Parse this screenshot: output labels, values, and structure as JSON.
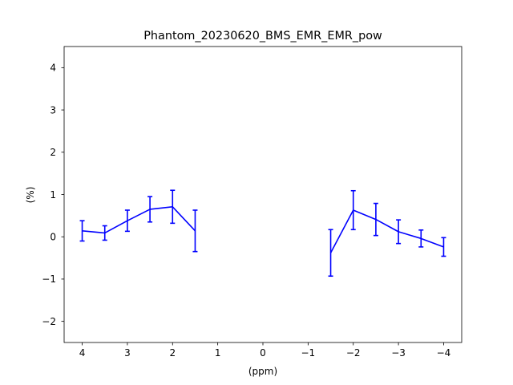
{
  "chart_data": {
    "type": "line",
    "title": "Phantom_20230620_BMS_EMR_EMR_pow",
    "xlabel": "(ppm)",
    "ylabel": "(%)",
    "xlim": [
      4.4,
      -4.4
    ],
    "ylim": [
      -2.5,
      4.5
    ],
    "x_reversed": true,
    "grid": false,
    "xticks": [
      {
        "value": 4,
        "label": "4"
      },
      {
        "value": 3,
        "label": "3"
      },
      {
        "value": 2,
        "label": "2"
      },
      {
        "value": 1,
        "label": "1"
      },
      {
        "value": 0,
        "label": "0"
      },
      {
        "value": -1,
        "label": "−1"
      },
      {
        "value": -2,
        "label": "−2"
      },
      {
        "value": -3,
        "label": "−3"
      },
      {
        "value": -4,
        "label": "−4"
      }
    ],
    "yticks": [
      {
        "value": -2,
        "label": "−2"
      },
      {
        "value": -1,
        "label": "−1"
      },
      {
        "value": 0,
        "label": "0"
      },
      {
        "value": 1,
        "label": "1"
      },
      {
        "value": 2,
        "label": "2"
      },
      {
        "value": 3,
        "label": "3"
      },
      {
        "value": 4,
        "label": "4"
      }
    ],
    "series": [
      {
        "color": "#0000ff",
        "segments": [
          {
            "x": [
              4.0,
              3.5,
              3.0,
              2.5,
              2.0,
              1.5
            ],
            "y": [
              0.14,
              0.09,
              0.38,
              0.65,
              0.71,
              0.14
            ],
            "yerr": [
              0.24,
              0.17,
              0.25,
              0.3,
              0.39,
              0.49
            ]
          },
          {
            "x": [
              -1.5,
              -2.0,
              -2.5,
              -3.0,
              -3.5,
              -4.0
            ],
            "y": [
              -0.38,
              0.63,
              0.41,
              0.12,
              -0.04,
              -0.24
            ],
            "yerr": [
              0.55,
              0.46,
              0.38,
              0.28,
              0.2,
              0.22
            ]
          }
        ]
      }
    ]
  }
}
